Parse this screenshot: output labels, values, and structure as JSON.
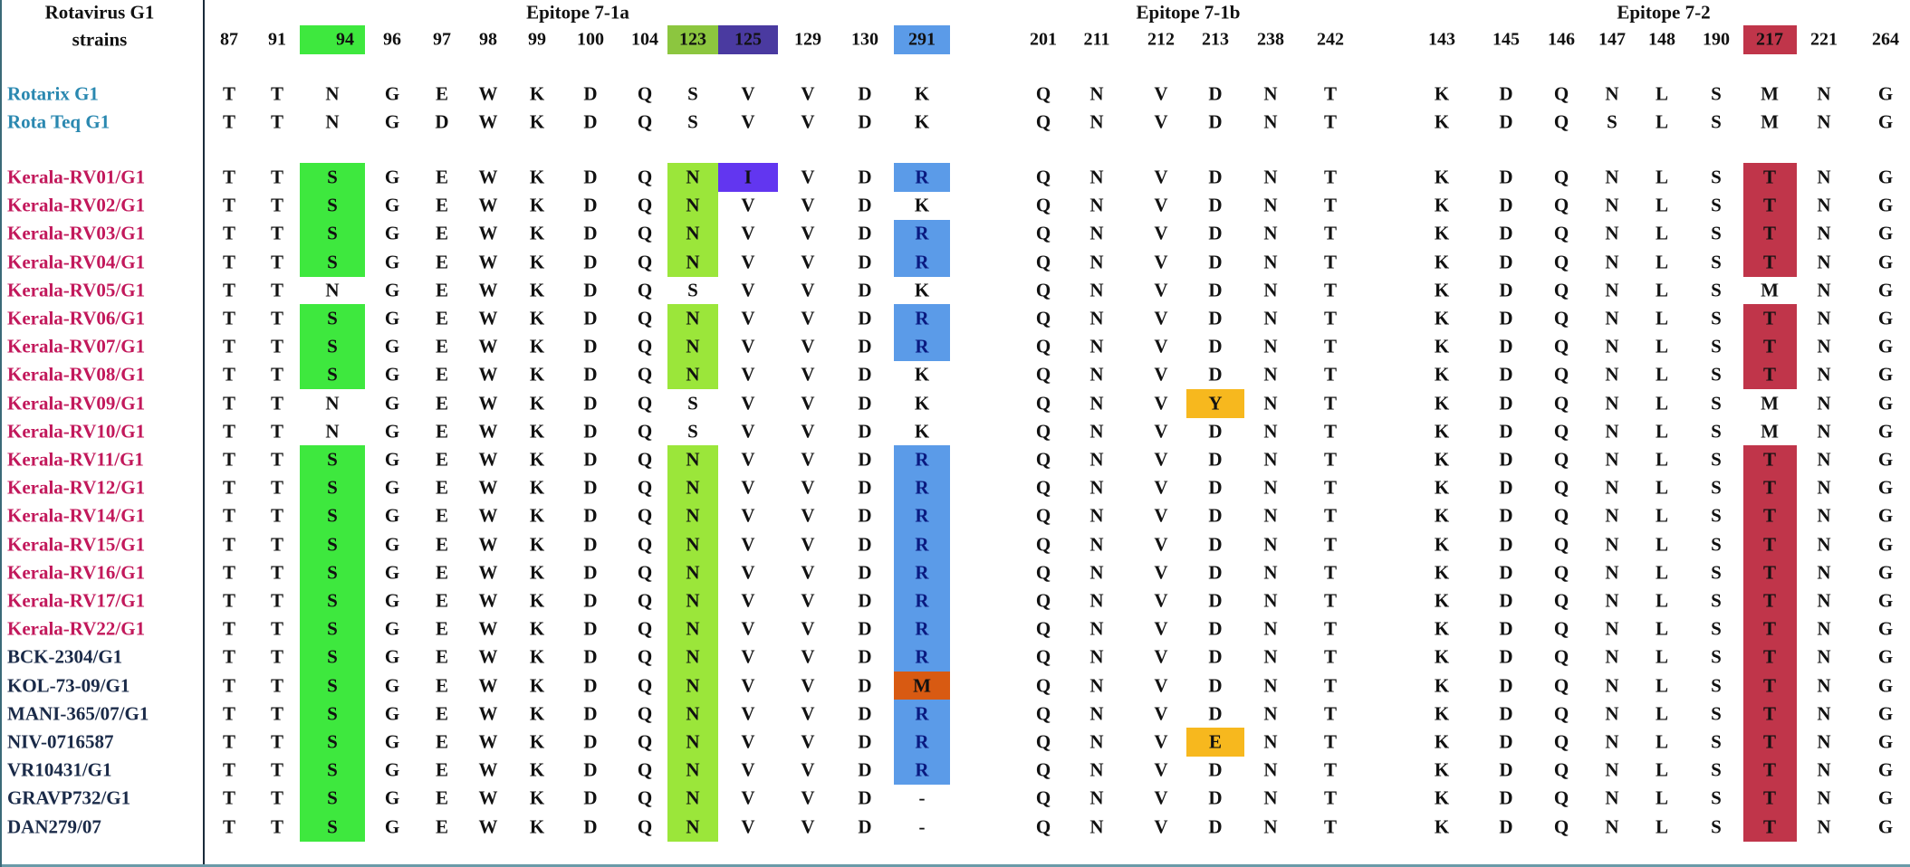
{
  "header": {
    "title_line1": "Rotavirus G1",
    "title_line2": "strains"
  },
  "epitopes": [
    {
      "name": "Epitope 7-1a",
      "positions": [
        "87",
        "91",
        "94",
        "96",
        "97",
        "98",
        "99",
        "100",
        "104",
        "123",
        "125",
        "129",
        "130",
        "291"
      ]
    },
    {
      "name": "Epitope 7-1b",
      "positions": [
        "201",
        "211",
        "212",
        "213",
        "238",
        "242"
      ]
    },
    {
      "name": "Epitope 7-2",
      "positions": [
        "143",
        "145",
        "146",
        "147",
        "148",
        "190",
        "217",
        "221",
        "264"
      ]
    }
  ],
  "header_highlights": {
    "94": "#3ee83e",
    "123": "#8cc63f",
    "125": "#4a3aa0",
    "291": "#5b9be8",
    "217": "#c0354a"
  },
  "residue_highlights": {
    "94": {
      "S": "#3ee83e"
    },
    "123": {
      "N": "#9be63a"
    },
    "125": {
      "I": "#6236f0"
    },
    "291": {
      "R": "#5b9be8",
      "M": "#d85a12"
    },
    "213": {
      "Y": "#f7b81e",
      "E": "#f7b81e"
    },
    "217": {
      "T": "#c0354a"
    }
  },
  "label_colors": {
    "vaccine": "#2a88b0",
    "kerala": "#c2185b",
    "other": "#1a2a48"
  },
  "rows": [
    {
      "name": "Rotarix G1",
      "group": "vaccine",
      "seq": [
        "T",
        "T",
        "N",
        "G",
        "E",
        "W",
        "K",
        "D",
        "Q",
        "S",
        "V",
        "V",
        "D",
        "K",
        "Q",
        "N",
        "V",
        "D",
        "N",
        "T",
        "K",
        "D",
        "Q",
        "N",
        "L",
        "S",
        "M",
        "N",
        "G"
      ]
    },
    {
      "name": "Rota Teq G1",
      "group": "vaccine",
      "seq": [
        "T",
        "T",
        "N",
        "G",
        "D",
        "W",
        "K",
        "D",
        "Q",
        "S",
        "V",
        "V",
        "D",
        "K",
        "Q",
        "N",
        "V",
        "D",
        "N",
        "T",
        "K",
        "D",
        "Q",
        "S",
        "L",
        "S",
        "M",
        "N",
        "G"
      ]
    },
    {
      "name": "Kerala-RV01/G1",
      "group": "kerala",
      "seq": [
        "T",
        "T",
        "S",
        "G",
        "E",
        "W",
        "K",
        "D",
        "Q",
        "N",
        "I",
        "V",
        "D",
        "R",
        "Q",
        "N",
        "V",
        "D",
        "N",
        "T",
        "K",
        "D",
        "Q",
        "N",
        "L",
        "S",
        "T",
        "N",
        "G"
      ]
    },
    {
      "name": "Kerala-RV02/G1",
      "group": "kerala",
      "seq": [
        "T",
        "T",
        "S",
        "G",
        "E",
        "W",
        "K",
        "D",
        "Q",
        "N",
        "V",
        "V",
        "D",
        "K",
        "Q",
        "N",
        "V",
        "D",
        "N",
        "T",
        "K",
        "D",
        "Q",
        "N",
        "L",
        "S",
        "T",
        "N",
        "G"
      ]
    },
    {
      "name": "Kerala-RV03/G1",
      "group": "kerala",
      "seq": [
        "T",
        "T",
        "S",
        "G",
        "E",
        "W",
        "K",
        "D",
        "Q",
        "N",
        "V",
        "V",
        "D",
        "R",
        "Q",
        "N",
        "V",
        "D",
        "N",
        "T",
        "K",
        "D",
        "Q",
        "N",
        "L",
        "S",
        "T",
        "N",
        "G"
      ]
    },
    {
      "name": "Kerala-RV04/G1",
      "group": "kerala",
      "seq": [
        "T",
        "T",
        "S",
        "G",
        "E",
        "W",
        "K",
        "D",
        "Q",
        "N",
        "V",
        "V",
        "D",
        "R",
        "Q",
        "N",
        "V",
        "D",
        "N",
        "T",
        "K",
        "D",
        "Q",
        "N",
        "L",
        "S",
        "T",
        "N",
        "G"
      ]
    },
    {
      "name": "Kerala-RV05/G1",
      "group": "kerala",
      "seq": [
        "T",
        "T",
        "N",
        "G",
        "E",
        "W",
        "K",
        "D",
        "Q",
        "S",
        "V",
        "V",
        "D",
        "K",
        "Q",
        "N",
        "V",
        "D",
        "N",
        "T",
        "K",
        "D",
        "Q",
        "N",
        "L",
        "S",
        "M",
        "N",
        "G"
      ]
    },
    {
      "name": "Kerala-RV06/G1",
      "group": "kerala",
      "seq": [
        "T",
        "T",
        "S",
        "G",
        "E",
        "W",
        "K",
        "D",
        "Q",
        "N",
        "V",
        "V",
        "D",
        "R",
        "Q",
        "N",
        "V",
        "D",
        "N",
        "T",
        "K",
        "D",
        "Q",
        "N",
        "L",
        "S",
        "T",
        "N",
        "G"
      ]
    },
    {
      "name": "Kerala-RV07/G1",
      "group": "kerala",
      "seq": [
        "T",
        "T",
        "S",
        "G",
        "E",
        "W",
        "K",
        "D",
        "Q",
        "N",
        "V",
        "V",
        "D",
        "R",
        "Q",
        "N",
        "V",
        "D",
        "N",
        "T",
        "K",
        "D",
        "Q",
        "N",
        "L",
        "S",
        "T",
        "N",
        "G"
      ]
    },
    {
      "name": "Kerala-RV08/G1",
      "group": "kerala",
      "seq": [
        "T",
        "T",
        "S",
        "G",
        "E",
        "W",
        "K",
        "D",
        "Q",
        "N",
        "V",
        "V",
        "D",
        "K",
        "Q",
        "N",
        "V",
        "D",
        "N",
        "T",
        "K",
        "D",
        "Q",
        "N",
        "L",
        "S",
        "T",
        "N",
        "G"
      ]
    },
    {
      "name": "Kerala-RV09/G1",
      "group": "kerala",
      "seq": [
        "T",
        "T",
        "N",
        "G",
        "E",
        "W",
        "K",
        "D",
        "Q",
        "S",
        "V",
        "V",
        "D",
        "K",
        "Q",
        "N",
        "V",
        "Y",
        "N",
        "T",
        "K",
        "D",
        "Q",
        "N",
        "L",
        "S",
        "M",
        "N",
        "G"
      ]
    },
    {
      "name": "Kerala-RV10/G1",
      "group": "kerala",
      "seq": [
        "T",
        "T",
        "N",
        "G",
        "E",
        "W",
        "K",
        "D",
        "Q",
        "S",
        "V",
        "V",
        "D",
        "K",
        "Q",
        "N",
        "V",
        "D",
        "N",
        "T",
        "K",
        "D",
        "Q",
        "N",
        "L",
        "S",
        "M",
        "N",
        "G"
      ]
    },
    {
      "name": "Kerala-RV11/G1",
      "group": "kerala",
      "seq": [
        "T",
        "T",
        "S",
        "G",
        "E",
        "W",
        "K",
        "D",
        "Q",
        "N",
        "V",
        "V",
        "D",
        "R",
        "Q",
        "N",
        "V",
        "D",
        "N",
        "T",
        "K",
        "D",
        "Q",
        "N",
        "L",
        "S",
        "T",
        "N",
        "G"
      ]
    },
    {
      "name": "Kerala-RV12/G1",
      "group": "kerala",
      "seq": [
        "T",
        "T",
        "S",
        "G",
        "E",
        "W",
        "K",
        "D",
        "Q",
        "N",
        "V",
        "V",
        "D",
        "R",
        "Q",
        "N",
        "V",
        "D",
        "N",
        "T",
        "K",
        "D",
        "Q",
        "N",
        "L",
        "S",
        "T",
        "N",
        "G"
      ]
    },
    {
      "name": "Kerala-RV14/G1",
      "group": "kerala",
      "seq": [
        "T",
        "T",
        "S",
        "G",
        "E",
        "W",
        "K",
        "D",
        "Q",
        "N",
        "V",
        "V",
        "D",
        "R",
        "Q",
        "N",
        "V",
        "D",
        "N",
        "T",
        "K",
        "D",
        "Q",
        "N",
        "L",
        "S",
        "T",
        "N",
        "G"
      ]
    },
    {
      "name": "Kerala-RV15/G1",
      "group": "kerala",
      "seq": [
        "T",
        "T",
        "S",
        "G",
        "E",
        "W",
        "K",
        "D",
        "Q",
        "N",
        "V",
        "V",
        "D",
        "R",
        "Q",
        "N",
        "V",
        "D",
        "N",
        "T",
        "K",
        "D",
        "Q",
        "N",
        "L",
        "S",
        "T",
        "N",
        "G"
      ]
    },
    {
      "name": "Kerala-RV16/G1",
      "group": "kerala",
      "seq": [
        "T",
        "T",
        "S",
        "G",
        "E",
        "W",
        "K",
        "D",
        "Q",
        "N",
        "V",
        "V",
        "D",
        "R",
        "Q",
        "N",
        "V",
        "D",
        "N",
        "T",
        "K",
        "D",
        "Q",
        "N",
        "L",
        "S",
        "T",
        "N",
        "G"
      ]
    },
    {
      "name": "Kerala-RV17/G1",
      "group": "kerala",
      "seq": [
        "T",
        "T",
        "S",
        "G",
        "E",
        "W",
        "K",
        "D",
        "Q",
        "N",
        "V",
        "V",
        "D",
        "R",
        "Q",
        "N",
        "V",
        "D",
        "N",
        "T",
        "K",
        "D",
        "Q",
        "N",
        "L",
        "S",
        "T",
        "N",
        "G"
      ]
    },
    {
      "name": "Kerala-RV22/G1",
      "group": "kerala",
      "seq": [
        "T",
        "T",
        "S",
        "G",
        "E",
        "W",
        "K",
        "D",
        "Q",
        "N",
        "V",
        "V",
        "D",
        "R",
        "Q",
        "N",
        "V",
        "D",
        "N",
        "T",
        "K",
        "D",
        "Q",
        "N",
        "L",
        "S",
        "T",
        "N",
        "G"
      ]
    },
    {
      "name": "BCK-2304/G1",
      "group": "other",
      "seq": [
        "T",
        "T",
        "S",
        "G",
        "E",
        "W",
        "K",
        "D",
        "Q",
        "N",
        "V",
        "V",
        "D",
        "R",
        "Q",
        "N",
        "V",
        "D",
        "N",
        "T",
        "K",
        "D",
        "Q",
        "N",
        "L",
        "S",
        "T",
        "N",
        "G"
      ]
    },
    {
      "name": "KOL-73-09/G1",
      "group": "other",
      "seq": [
        "T",
        "T",
        "S",
        "G",
        "E",
        "W",
        "K",
        "D",
        "Q",
        "N",
        "V",
        "V",
        "D",
        "M",
        "Q",
        "N",
        "V",
        "D",
        "N",
        "T",
        "K",
        "D",
        "Q",
        "N",
        "L",
        "S",
        "T",
        "N",
        "G"
      ]
    },
    {
      "name": "MANI-365/07/G1",
      "group": "other",
      "seq": [
        "T",
        "T",
        "S",
        "G",
        "E",
        "W",
        "K",
        "D",
        "Q",
        "N",
        "V",
        "V",
        "D",
        "R",
        "Q",
        "N",
        "V",
        "D",
        "N",
        "T",
        "K",
        "D",
        "Q",
        "N",
        "L",
        "S",
        "T",
        "N",
        "G"
      ]
    },
    {
      "name": "NIV-0716587",
      "group": "other",
      "seq": [
        "T",
        "T",
        "S",
        "G",
        "E",
        "W",
        "K",
        "D",
        "Q",
        "N",
        "V",
        "V",
        "D",
        "R",
        "Q",
        "N",
        "V",
        "E",
        "N",
        "T",
        "K",
        "D",
        "Q",
        "N",
        "L",
        "S",
        "T",
        "N",
        "G"
      ]
    },
    {
      "name": "VR10431/G1",
      "group": "other",
      "seq": [
        "T",
        "T",
        "S",
        "G",
        "E",
        "W",
        "K",
        "D",
        "Q",
        "N",
        "V",
        "V",
        "D",
        "R",
        "Q",
        "N",
        "V",
        "D",
        "N",
        "T",
        "K",
        "D",
        "Q",
        "N",
        "L",
        "S",
        "T",
        "N",
        "G"
      ]
    },
    {
      "name": "GRAVP732/G1",
      "group": "other",
      "seq": [
        "T",
        "T",
        "S",
        "G",
        "E",
        "W",
        "K",
        "D",
        "Q",
        "N",
        "V",
        "V",
        "D",
        "-",
        "Q",
        "N",
        "V",
        "D",
        "N",
        "T",
        "K",
        "D",
        "Q",
        "N",
        "L",
        "S",
        "T",
        "N",
        "G"
      ]
    },
    {
      "name": "DAN279/07",
      "group": "other",
      "seq": [
        "T",
        "T",
        "S",
        "G",
        "E",
        "W",
        "K",
        "D",
        "Q",
        "N",
        "V",
        "V",
        "D",
        "-",
        "Q",
        "N",
        "V",
        "D",
        "N",
        "T",
        "K",
        "D",
        "Q",
        "N",
        "L",
        "S",
        "T",
        "N",
        "G"
      ]
    }
  ]
}
